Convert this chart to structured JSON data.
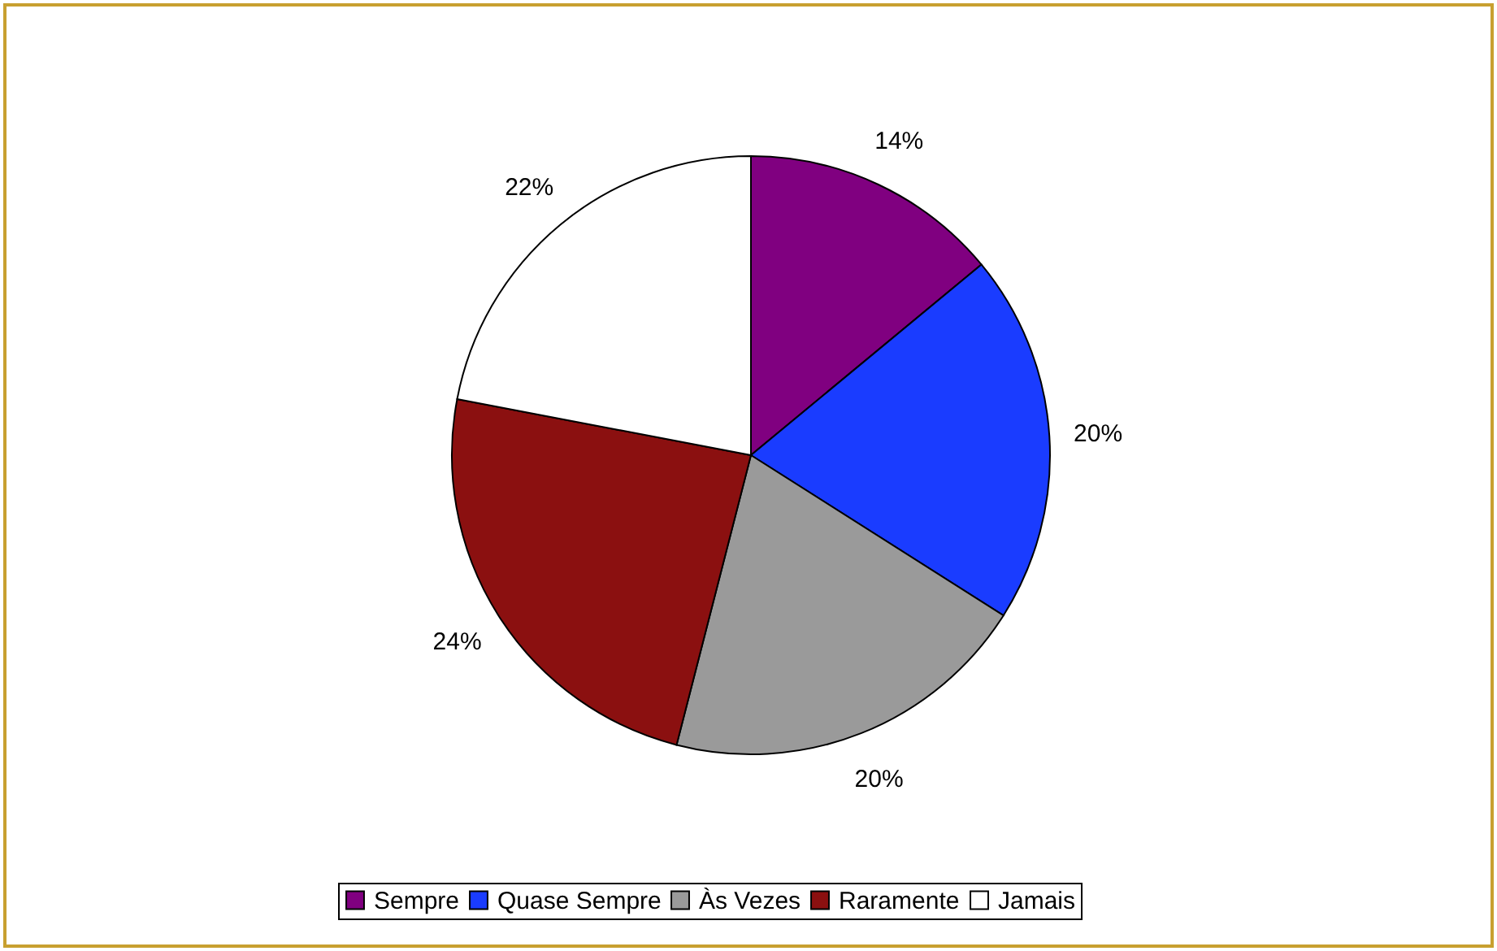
{
  "chart_data": {
    "type": "pie",
    "categories": [
      "Sempre",
      "Quase Sempre",
      "Às Vezes",
      "Raramente",
      "Jamais"
    ],
    "values": [
      14,
      20,
      20,
      24,
      22
    ],
    "value_labels": [
      "14%",
      "20%",
      "20%",
      "24%",
      "22%"
    ],
    "colors": [
      "#800080",
      "#1a3cff",
      "#9a9a9a",
      "#8b1010",
      "#ffffff"
    ],
    "legend": "bottom"
  }
}
